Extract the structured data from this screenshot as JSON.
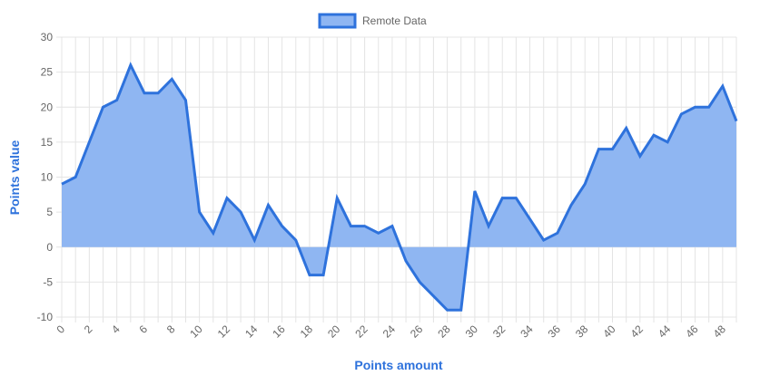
{
  "chart_data": {
    "type": "area",
    "legend": {
      "label": "Remote Data",
      "position": "top"
    },
    "xlabel": "Points amount",
    "ylabel": "Points value",
    "ylim": [
      -10,
      30
    ],
    "yticks": [
      30,
      25,
      20,
      15,
      10,
      5,
      0,
      -5,
      -10
    ],
    "xlim": [
      0,
      49
    ],
    "xticks": [
      0,
      2,
      4,
      6,
      8,
      10,
      12,
      14,
      16,
      18,
      20,
      22,
      24,
      26,
      28,
      30,
      32,
      34,
      36,
      38,
      40,
      42,
      44,
      46,
      48
    ],
    "grid": true,
    "series": [
      {
        "name": "Remote Data",
        "x": [
          0,
          1,
          2,
          3,
          4,
          5,
          6,
          7,
          8,
          9,
          10,
          11,
          12,
          13,
          14,
          15,
          16,
          17,
          18,
          19,
          20,
          21,
          22,
          23,
          24,
          25,
          26,
          27,
          28,
          29,
          30,
          31,
          32,
          33,
          34,
          35,
          36,
          37,
          38,
          39,
          40,
          41,
          42,
          43,
          44,
          45,
          46,
          47,
          48,
          49
        ],
        "values": [
          9,
          10,
          15,
          20,
          21,
          26,
          22,
          22,
          24,
          21,
          5,
          2,
          7,
          5,
          1,
          6,
          3,
          1,
          -4,
          -4,
          7,
          3,
          3,
          2,
          3,
          -2,
          -5,
          -7,
          -9,
          -9,
          8,
          3,
          7,
          7,
          4,
          1,
          2,
          6,
          9,
          14,
          14,
          17,
          13,
          16,
          15,
          19,
          20,
          20,
          23,
          18
        ]
      }
    ],
    "colors": {
      "line": "#2e72dc",
      "fill": "#8fb6f2",
      "axis_title": "#2e72dc",
      "grid": "#e4e4e4"
    }
  }
}
